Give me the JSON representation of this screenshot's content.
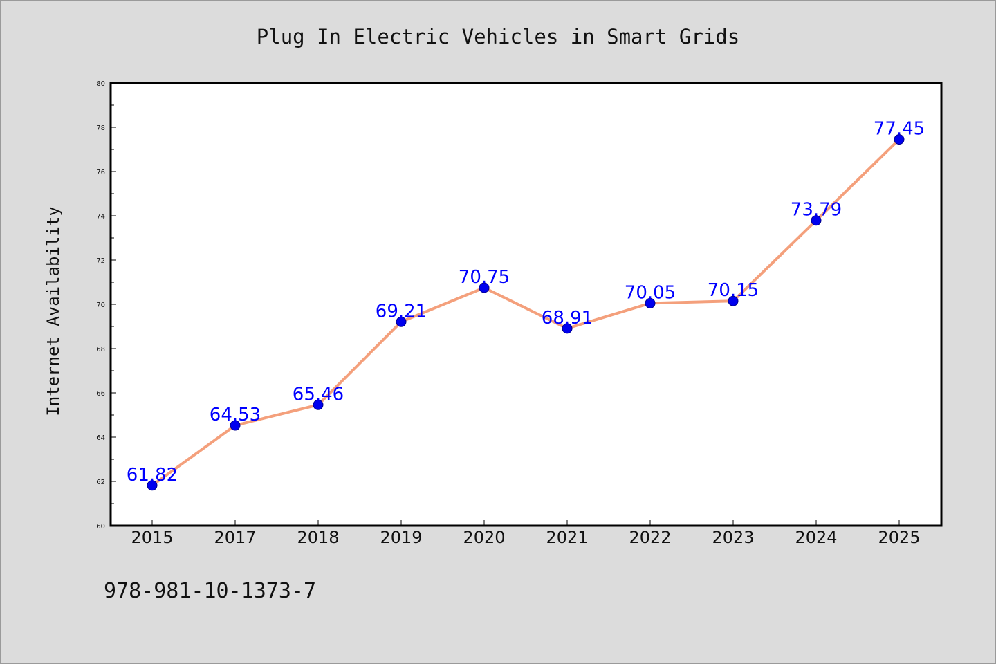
{
  "chart_data": {
    "type": "line",
    "title": "Plug In Electric Vehicles in Smart Grids",
    "xlabel": "",
    "ylabel": "Internet Availability",
    "categories": [
      "2015",
      "2017",
      "2018",
      "2019",
      "2020",
      "2021",
      "2022",
      "2023",
      "2024",
      "2025"
    ],
    "series": [
      {
        "values": [
          61.82,
          64.53,
          65.46,
          69.21,
          70.75,
          68.91,
          70.05,
          70.15,
          73.79,
          77.45
        ],
        "labels": [
          "61.82",
          "64.53",
          "65.46",
          "69.21",
          "70.75",
          "68.91",
          "70.05",
          "70.15",
          "73.79",
          "77.45"
        ]
      }
    ],
    "ylim": [
      60,
      80
    ],
    "yticks": [
      "60",
      "62",
      "64",
      "66",
      "68",
      "70",
      "72",
      "74",
      "76",
      "78",
      "80"
    ],
    "grid": false,
    "legend": "none",
    "colors": {
      "line": "#f4a07c",
      "marker": "#0000ee",
      "marker_edge": "#00008b",
      "data_label": "#0000ff"
    }
  },
  "footnote": "978-981-10-1373-7"
}
